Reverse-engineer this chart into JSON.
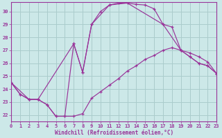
{
  "xlabel": "Windchill (Refroidissement éolien,°C)",
  "xlim": [
    0,
    23
  ],
  "ylim": [
    21.5,
    30.7
  ],
  "yticks": [
    22,
    23,
    24,
    25,
    26,
    27,
    28,
    29,
    30
  ],
  "xticks": [
    0,
    1,
    2,
    3,
    4,
    5,
    6,
    7,
    8,
    9,
    10,
    11,
    12,
    13,
    14,
    15,
    16,
    17,
    18,
    19,
    20,
    21,
    22,
    23
  ],
  "background_color": "#cce8e8",
  "grid_color": "#aacccc",
  "line_color": "#993399",
  "curve1_x": [
    0,
    1,
    2,
    3,
    4,
    5,
    6,
    7,
    8,
    9,
    10,
    11,
    12,
    13,
    14,
    15,
    16,
    17,
    18,
    19,
    20,
    21,
    22,
    23
  ],
  "curve1_y": [
    24.5,
    23.6,
    23.2,
    23.2,
    22.8,
    21.9,
    21.9,
    21.9,
    22.1,
    23.3,
    23.8,
    24.3,
    24.8,
    25.4,
    25.8,
    26.3,
    26.6,
    27.0,
    27.2,
    27.0,
    26.8,
    26.5,
    26.1,
    25.2
  ],
  "curve2_x": [
    0,
    1,
    2,
    3,
    4,
    5,
    6,
    7,
    8,
    9,
    10,
    11,
    12,
    13,
    14,
    15,
    16,
    17,
    18,
    19,
    20,
    21,
    22,
    23
  ],
  "curve2_y": [
    24.5,
    23.6,
    23.2,
    23.2,
    22.8,
    21.9,
    21.9,
    27.5,
    25.3,
    29.0,
    30.0,
    30.5,
    30.65,
    30.65,
    30.55,
    30.5,
    30.2,
    29.0,
    28.8,
    27.0,
    26.5,
    26.0,
    25.8,
    25.2
  ],
  "curve3_x": [
    0,
    2,
    3,
    7,
    8,
    9,
    11,
    13,
    17,
    19,
    20,
    21,
    22,
    23
  ],
  "curve3_y": [
    24.5,
    23.2,
    23.2,
    27.5,
    25.3,
    29.0,
    30.5,
    30.65,
    29.0,
    27.0,
    26.5,
    26.0,
    25.8,
    25.2
  ]
}
